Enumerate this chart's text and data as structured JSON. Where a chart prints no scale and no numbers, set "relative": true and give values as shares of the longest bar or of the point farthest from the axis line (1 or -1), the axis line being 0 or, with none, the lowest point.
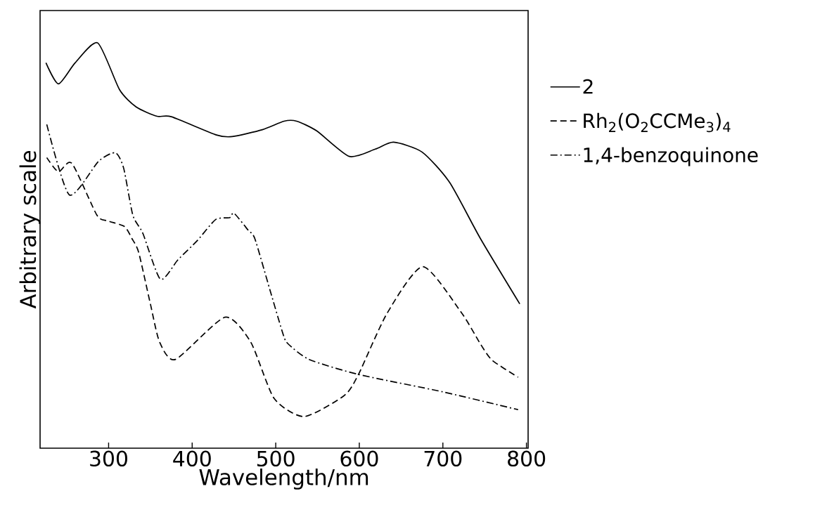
{
  "chart_data": {
    "type": "line",
    "xlabel": "Wavelength/nm",
    "ylabel": "Arbitrary scale",
    "relative": true,
    "xlim": [
      218,
      802
    ],
    "xticks": [
      300,
      400,
      500,
      600,
      700,
      800
    ],
    "tick_labels": "x",
    "legend": "right",
    "grid": false,
    "series": [
      {
        "name": "2",
        "color": "#000000",
        "line_style": "solid",
        "x": [
          225,
          240,
          260,
          287,
          313,
          333,
          358,
          375,
          429,
          448,
          484,
          510,
          525,
          549,
          588,
          619,
          641,
          675,
          708,
          745,
          792
        ],
        "values": [
          0.951,
          0.899,
          0.951,
          1.0,
          0.885,
          0.842,
          0.819,
          0.818,
          0.773,
          0.769,
          0.786,
          0.807,
          0.807,
          0.783,
          0.72,
          0.738,
          0.755,
          0.731,
          0.656,
          0.517,
          0.356
        ]
      },
      {
        "name": "Rh$_{2}$(O$_{2}$CCMe$_{3}$)$_{4}$",
        "color": "#000000",
        "line_style": "dashed",
        "x": [
          226,
          240,
          256,
          286,
          299,
          319,
          328,
          336,
          350,
          361,
          380,
          439,
          470,
          498,
          534,
          582,
          599,
          633,
          676,
          722,
          745,
          759,
          790
        ],
        "values": [
          0.717,
          0.682,
          0.703,
          0.575,
          0.561,
          0.547,
          0.517,
          0.483,
          0.356,
          0.262,
          0.219,
          0.323,
          0.262,
          0.123,
          0.078,
          0.13,
          0.182,
          0.332,
          0.448,
          0.335,
          0.257,
          0.217,
          0.175
        ]
      },
      {
        "name": "1,4-benzoquinone",
        "color": "#000000",
        "line_style": "dashdot",
        "x": [
          226,
          253,
          288,
          308,
          318,
          329,
          341,
          362,
          383,
          406,
          428,
          445,
          450,
          467,
          475,
          493,
          509,
          515,
          540,
          599,
          700,
          790
        ],
        "values": [
          0.799,
          0.625,
          0.708,
          0.729,
          0.691,
          0.575,
          0.53,
          0.417,
          0.465,
          0.512,
          0.564,
          0.569,
          0.58,
          0.538,
          0.517,
          0.391,
          0.28,
          0.257,
          0.219,
          0.182,
          0.139,
          0.095
        ]
      }
    ]
  }
}
